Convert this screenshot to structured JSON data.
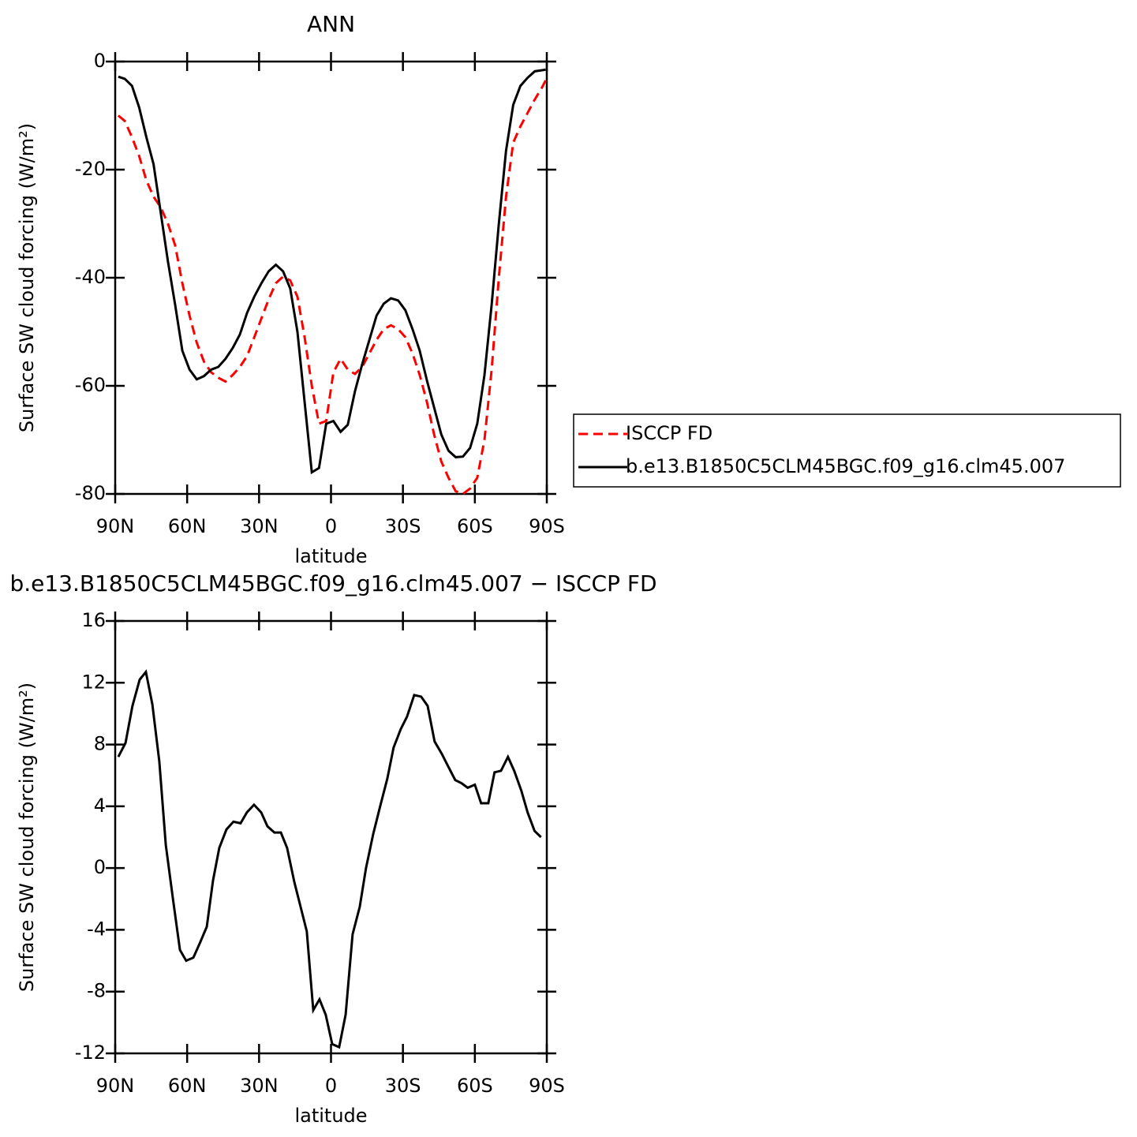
{
  "chart_data": [
    {
      "type": "line",
      "title": "ANN",
      "xlabel": "latitude",
      "ylabel": "Surface SW cloud forcing (W/m²)",
      "xlim": [
        90,
        -90
      ],
      "xticks": [
        {
          "value": 90,
          "label": "90N"
        },
        {
          "value": 60,
          "label": "60N"
        },
        {
          "value": 30,
          "label": "30N"
        },
        0,
        {
          "value": -30,
          "label": "30S"
        },
        {
          "value": -60,
          "label": "60S"
        },
        {
          "value": -90,
          "label": "90S"
        }
      ],
      "ylim": [
        -80,
        0
      ],
      "yticks": [
        0,
        -20,
        -40,
        -60,
        -80
      ],
      "legend": "right",
      "x": [
        88.7,
        86,
        83,
        80,
        77,
        74,
        71,
        68,
        65,
        62,
        59,
        56,
        53,
        50,
        47,
        44,
        41,
        38,
        35,
        32,
        29,
        26,
        23,
        20,
        17,
        14,
        11,
        8,
        5,
        2,
        -1,
        -4,
        -7,
        -10,
        -13,
        -16,
        -19,
        -22,
        -25,
        -28,
        -31,
        -34,
        -37,
        -40,
        -43,
        -46,
        -49,
        -52,
        -55,
        -58,
        -61,
        -64,
        -67,
        -70,
        -73,
        -76,
        -79,
        -82,
        -85,
        -88,
        -89.5
      ],
      "series": [
        {
          "name": "ISCCP FD",
          "color": "#ff0000",
          "dashed": true,
          "values": [
            -10,
            -11,
            -14,
            -17.5,
            -22,
            -25,
            -27,
            -30,
            -34,
            -41,
            -47,
            -52,
            -55.5,
            -57.5,
            -58.5,
            -59.2,
            -58,
            -56.5,
            -54.5,
            -51,
            -47.5,
            -44,
            -41,
            -39.8,
            -40.5,
            -43.5,
            -51,
            -60,
            -67,
            -66.5,
            -57.5,
            -55,
            -57,
            -57.8,
            -56.5,
            -54,
            -51.5,
            -49.5,
            -48.8,
            -49.5,
            -51,
            -54,
            -58,
            -63,
            -69,
            -74,
            -77,
            -79.5,
            -80,
            -79,
            -77,
            -70,
            -57,
            -40,
            -25,
            -15,
            -12,
            -9.5,
            -7,
            -4.8,
            -3.5
          ]
        },
        {
          "name": "b.e13.B1850C5CLM45BGC.f09_g16.clm45.007",
          "color": "#000000",
          "dashed": false,
          "values": [
            -2.8,
            -3.2,
            -4.5,
            -8.5,
            -14,
            -19,
            -28,
            -37,
            -45,
            -53.5,
            -57,
            -58.8,
            -58.2,
            -57,
            -56.5,
            -55,
            -53,
            -50.5,
            -46.5,
            -43.5,
            -41,
            -38.8,
            -37.6,
            -38.8,
            -42,
            -50,
            -63,
            -76,
            -75.2,
            -67,
            -66.5,
            -68.5,
            -67.2,
            -61,
            -56,
            -51.5,
            -47,
            -44.8,
            -43.8,
            -44.2,
            -46,
            -49.5,
            -53.5,
            -59,
            -64,
            -69,
            -72,
            -73.2,
            -73.1,
            -71.5,
            -67,
            -58,
            -45,
            -30,
            -16.5,
            -8,
            -4.5,
            -3,
            -1.8,
            -1.6,
            -1.5
          ]
        }
      ]
    },
    {
      "type": "line",
      "title": "b.e13.B1850C5CLM45BGC.f09_g16.clm45.007 − ISCCP FD",
      "xlabel": "latitude",
      "ylabel": "Surface SW cloud forcing (W/m²)",
      "xlim": [
        90,
        -90
      ],
      "xticks": [
        {
          "value": 90,
          "label": "90N"
        },
        {
          "value": 60,
          "label": "60N"
        },
        {
          "value": 30,
          "label": "30N"
        },
        0,
        {
          "value": -30,
          "label": "30S"
        },
        {
          "value": -60,
          "label": "60S"
        },
        {
          "value": -90,
          "label": "90S"
        }
      ],
      "ylim": [
        -12,
        16
      ],
      "yticks": [
        16,
        12,
        8,
        4,
        0,
        -4,
        -8,
        -12
      ],
      "color": "#000000",
      "x": [
        88.7,
        85.7,
        82.8,
        79.8,
        77.2,
        74.5,
        71.6,
        68.9,
        66,
        63,
        60.4,
        57.4,
        54.8,
        51.8,
        49.2,
        46.6,
        43.6,
        40.7,
        37.7,
        35.1,
        32.1,
        29.1,
        26.5,
        23.6,
        20.9,
        18.3,
        15.3,
        12.7,
        10.1,
        7.4,
        4.8,
        2.2,
        -0.5,
        -3.4,
        -6.1,
        -9,
        -12,
        -14.6,
        -17.6,
        -20.5,
        -23.5,
        -26.1,
        -29.1,
        -31.7,
        -34.7,
        -37.6,
        -40.3,
        -43.2,
        -46.2,
        -48.8,
        -51.8,
        -54.4,
        -57,
        -60,
        -62.6,
        -65.6,
        -68.2,
        -70.9,
        -73.8,
        -76.4,
        -79.4,
        -82,
        -84.9,
        -87.6
      ],
      "values": [
        7.2,
        8.1,
        10.5,
        12.2,
        12.7,
        10.6,
        6.9,
        1.5,
        -1.9,
        -5.3,
        -6,
        -5.8,
        -4.9,
        -3.8,
        -0.8,
        1.3,
        2.5,
        3,
        2.9,
        3.6,
        4.1,
        3.6,
        2.7,
        2.3,
        2.3,
        1.3,
        -0.9,
        -2.5,
        -4.1,
        -9.2,
        -8.5,
        -9.5,
        -11.4,
        -11.6,
        -9.5,
        -4.3,
        -2.5,
        0,
        2.2,
        4,
        5.8,
        7.8,
        9,
        9.8,
        11.2,
        11.1,
        10.5,
        8.2,
        7.4,
        6.6,
        5.7,
        5.5,
        5.2,
        5.4,
        4.2,
        4.2,
        6.2,
        6.3,
        7.2,
        6.3,
        5,
        3.6,
        2.4,
        2
      ]
    }
  ]
}
